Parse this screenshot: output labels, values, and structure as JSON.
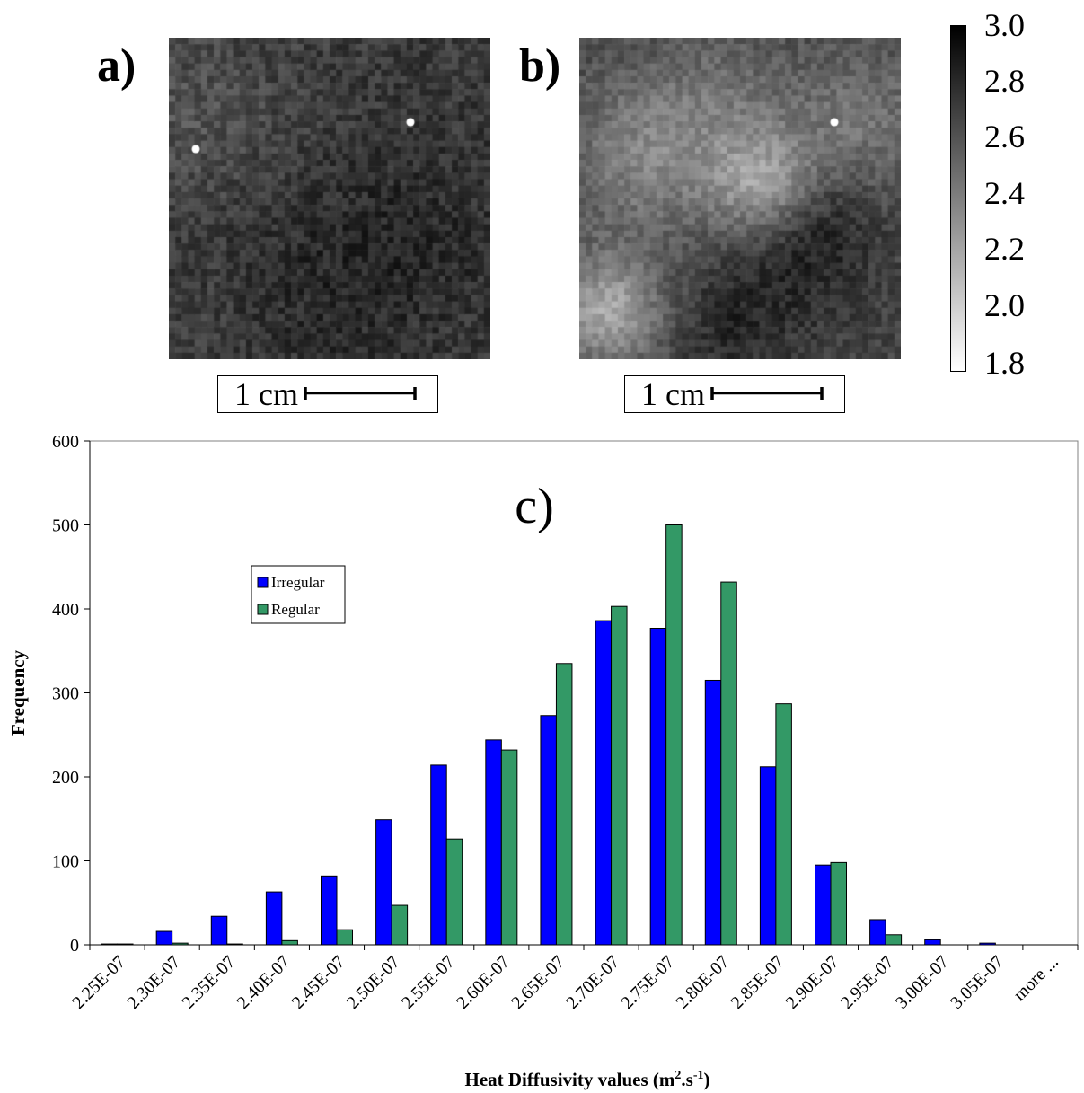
{
  "panels": {
    "a_label": "a)",
    "b_label": "b)",
    "c_label": "c)",
    "scale_a": "1 cm",
    "scale_b": "1 cm"
  },
  "colorbar": {
    "ticks": [
      "3.0",
      "2.8",
      "2.6",
      "2.4",
      "2.2",
      "2.0",
      "1.8"
    ],
    "colors": [
      "#000000",
      "#ffffff"
    ]
  },
  "chart_data": {
    "type": "bar",
    "title": "c)",
    "xlabel": "Heat Diffusivity values (m2.s-1)",
    "ylabel": "Frequency",
    "ylim": [
      0,
      600
    ],
    "yticks": [
      "0",
      "100",
      "200",
      "300",
      "400",
      "500",
      "600"
    ],
    "categories": [
      "2.25E-07",
      "2.30E-07",
      "2.35E-07",
      "2.40E-07",
      "2.45E-07",
      "2.50E-07",
      "2.55E-07",
      "2.60E-07",
      "2.65E-07",
      "2.70E-07",
      "2.75E-07",
      "2.80E-07",
      "2.85E-07",
      "2.90E-07",
      "2.95E-07",
      "3.00E-07",
      "3.05E-07",
      "more ..."
    ],
    "series": [
      {
        "name": "Irregular",
        "color": "#0000ff",
        "values": [
          1,
          16,
          34,
          63,
          82,
          149,
          214,
          244,
          273,
          386,
          377,
          315,
          212,
          95,
          30,
          6,
          2,
          0
        ]
      },
      {
        "name": "Regular",
        "color": "#339966",
        "values": [
          1,
          2,
          1,
          5,
          18,
          47,
          126,
          232,
          335,
          403,
          500,
          432,
          287,
          98,
          12,
          0,
          0,
          0
        ]
      }
    ],
    "legend_position": "upper-left",
    "grid": false
  }
}
